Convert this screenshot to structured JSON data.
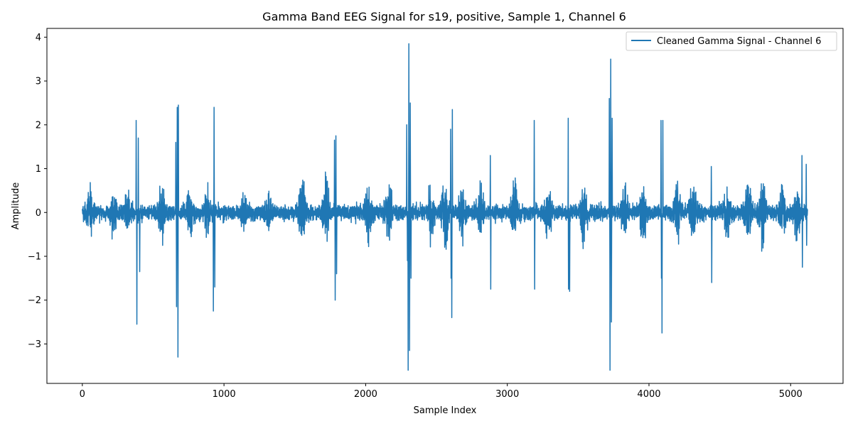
{
  "chart_data": {
    "type": "line",
    "title": "Gamma Band EEG Signal for s19, positive, Sample 1, Channel 6",
    "xlabel": "Sample Index",
    "ylabel": "Amplitude",
    "xlim": [
      -250,
      5370
    ],
    "ylim": [
      -3.9,
      4.2
    ],
    "xticks": [
      0,
      1000,
      2000,
      3000,
      4000,
      5000
    ],
    "yticks": [
      -3,
      -2,
      -1,
      0,
      1,
      2,
      3,
      4
    ],
    "ytick_labels": [
      "−3",
      "−2",
      "−1",
      "0",
      "1",
      "2",
      "3",
      "4"
    ],
    "legend_position": "upper-right",
    "grid": false,
    "series": [
      {
        "name": "Cleaned Gamma Signal - Channel 6",
        "color": "#1f77b4",
        "n_samples": 5120,
        "baseline_amplitude": 0.3,
        "peaks": [
          {
            "x": 380,
            "y": 2.1
          },
          {
            "x": 385,
            "y": -2.55
          },
          {
            "x": 395,
            "y": 1.7
          },
          {
            "x": 405,
            "y": 1.05
          },
          {
            "x": 405,
            "y": -1.35
          },
          {
            "x": 660,
            "y": 1.6
          },
          {
            "x": 665,
            "y": -2.15
          },
          {
            "x": 670,
            "y": 2.4
          },
          {
            "x": 675,
            "y": -3.3
          },
          {
            "x": 678,
            "y": 2.45
          },
          {
            "x": 930,
            "y": 2.4
          },
          {
            "x": 925,
            "y": -2.25
          },
          {
            "x": 935,
            "y": -1.7
          },
          {
            "x": 1780,
            "y": 1.65
          },
          {
            "x": 1785,
            "y": -2.0
          },
          {
            "x": 1790,
            "y": 1.75
          },
          {
            "x": 1795,
            "y": -1.4
          },
          {
            "x": 2290,
            "y": 2.0
          },
          {
            "x": 2295,
            "y": -1.1
          },
          {
            "x": 2300,
            "y": -3.6
          },
          {
            "x": 2305,
            "y": 3.85
          },
          {
            "x": 2310,
            "y": -3.15
          },
          {
            "x": 2315,
            "y": 2.5
          },
          {
            "x": 2320,
            "y": -1.5
          },
          {
            "x": 2600,
            "y": 1.9
          },
          {
            "x": 2603,
            "y": -1.5
          },
          {
            "x": 2608,
            "y": -2.4
          },
          {
            "x": 2612,
            "y": 2.35
          },
          {
            "x": 2880,
            "y": 1.3
          },
          {
            "x": 2883,
            "y": -1.75
          },
          {
            "x": 3190,
            "y": 2.1
          },
          {
            "x": 3193,
            "y": -1.75
          },
          {
            "x": 3430,
            "y": 2.15
          },
          {
            "x": 3432,
            "y": -1.75
          },
          {
            "x": 3440,
            "y": -1.8
          },
          {
            "x": 3720,
            "y": 2.6
          },
          {
            "x": 3725,
            "y": -3.6
          },
          {
            "x": 3730,
            "y": 3.5
          },
          {
            "x": 3735,
            "y": -2.5
          },
          {
            "x": 3740,
            "y": 2.15
          },
          {
            "x": 4085,
            "y": 2.1
          },
          {
            "x": 4088,
            "y": -1.5
          },
          {
            "x": 4092,
            "y": -2.75
          },
          {
            "x": 4098,
            "y": 2.1
          },
          {
            "x": 4440,
            "y": 1.05
          },
          {
            "x": 4443,
            "y": -1.6
          },
          {
            "x": 5080,
            "y": 1.3
          },
          {
            "x": 5083,
            "y": -1.25
          },
          {
            "x": 5110,
            "y": 1.1
          },
          {
            "x": 5113,
            "y": -0.75
          }
        ],
        "bursts": [
          {
            "x": 60,
            "a": 0.55
          },
          {
            "x": 220,
            "a": 0.45
          },
          {
            "x": 320,
            "a": 0.5
          },
          {
            "x": 560,
            "a": 0.75
          },
          {
            "x": 760,
            "a": 0.55
          },
          {
            "x": 880,
            "a": 0.5
          },
          {
            "x": 1140,
            "a": 0.4
          },
          {
            "x": 1310,
            "a": 0.35
          },
          {
            "x": 1550,
            "a": 0.9
          },
          {
            "x": 1720,
            "a": 0.8
          },
          {
            "x": 2020,
            "a": 0.7
          },
          {
            "x": 2160,
            "a": 0.9
          },
          {
            "x": 2460,
            "a": 0.6
          },
          {
            "x": 2560,
            "a": 1.1
          },
          {
            "x": 2680,
            "a": 0.7
          },
          {
            "x": 2810,
            "a": 0.6
          },
          {
            "x": 3050,
            "a": 0.8
          },
          {
            "x": 3290,
            "a": 0.7
          },
          {
            "x": 3540,
            "a": 0.8
          },
          {
            "x": 3830,
            "a": 0.6
          },
          {
            "x": 3960,
            "a": 0.7
          },
          {
            "x": 4200,
            "a": 0.8
          },
          {
            "x": 4310,
            "a": 0.6
          },
          {
            "x": 4550,
            "a": 0.6
          },
          {
            "x": 4700,
            "a": 0.9
          },
          {
            "x": 4800,
            "a": 0.9
          },
          {
            "x": 4940,
            "a": 0.6
          },
          {
            "x": 5050,
            "a": 0.7
          }
        ]
      }
    ]
  }
}
